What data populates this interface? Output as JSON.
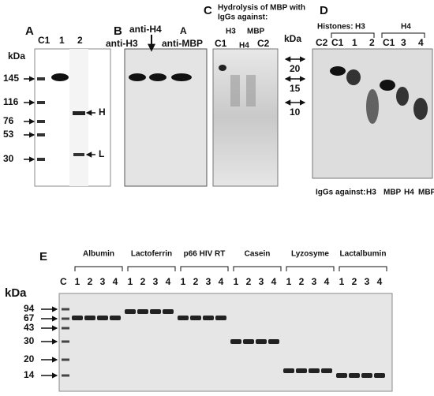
{
  "panel_a": {
    "label": "A",
    "unit": "kDa",
    "lanes": [
      "C1",
      "1",
      "2"
    ],
    "markers": [
      145,
      116,
      76,
      53,
      30
    ],
    "bands": [
      "H",
      "L"
    ]
  },
  "panel_b": {
    "label": "B",
    "antibodies": [
      "anti-H4",
      "A",
      "anti-H3",
      "anti-MBP"
    ]
  },
  "panel_c": {
    "label": "C",
    "title": [
      "Hydrolysis of MBP with",
      "IgGs against:"
    ],
    "lane_groups": [
      "H3",
      "MBP"
    ],
    "lanes": [
      "C1",
      "H4",
      "C2"
    ],
    "markers": [
      20,
      15,
      10
    ]
  },
  "panel_d": {
    "label": "D",
    "unit": "kDa",
    "histones_label": "Histones:",
    "histones": [
      "H3",
      "H4"
    ],
    "lanes": [
      "C2",
      "C1",
      "1",
      "2",
      "C1",
      "3",
      "4"
    ],
    "igg_label": "IgGs against:",
    "igg": [
      "H3",
      "MBP",
      "H4",
      "MBP"
    ]
  },
  "panel_e": {
    "label": "E",
    "unit": "kDa",
    "proteins": [
      "Albumin",
      "Lactoferrin",
      "p66 HIV RT",
      "Casein",
      "Lyzosyme",
      "Lactalbumin"
    ],
    "control_lane": "C",
    "lane_numbers": [
      "1",
      "2",
      "3",
      "4"
    ],
    "markers": [
      94,
      67,
      43,
      30,
      20,
      14
    ]
  }
}
